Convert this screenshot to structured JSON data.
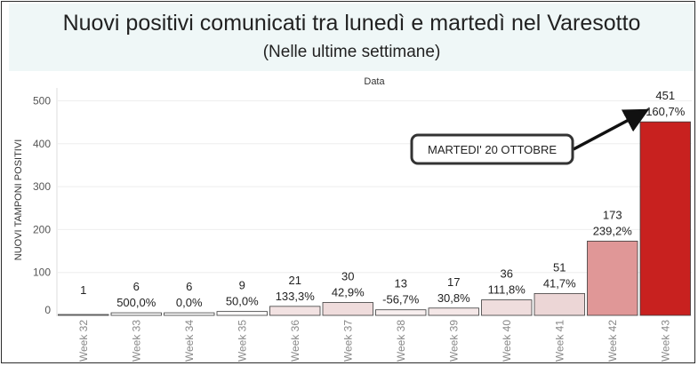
{
  "header": {
    "title": "Nuovi positivi comunicati tra lunedì e martedì nel Varesotto",
    "subtitle": "(Nelle ultime settimane)"
  },
  "chart_data": {
    "type": "bar",
    "title": "Nuovi positivi comunicati tra lunedì e martedì nel Varesotto",
    "subtitle": "(Nelle ultime settimane)",
    "column_header": "Data",
    "ylabel": "NUOVI TAMPONI POSITIVI",
    "ylim": [
      0,
      530
    ],
    "yticks": [
      0,
      100,
      200,
      300,
      400,
      500
    ],
    "categories": [
      "Week 32",
      "Week 33",
      "Week 34",
      "Week 35",
      "Week 36",
      "Week 37",
      "Week 38",
      "Week 39",
      "Week 40",
      "Week 41",
      "Week 42",
      "Week 43"
    ],
    "values": [
      1,
      6,
      6,
      9,
      21,
      30,
      13,
      17,
      36,
      51,
      173,
      451
    ],
    "pct_change": [
      "",
      "500,0%",
      "0,0%",
      "50,0%",
      "133,3%",
      "42,9%",
      "-56,7%",
      "30,8%",
      "111,8%",
      "41,7%",
      "239,2%",
      "160,7%"
    ],
    "bar_colors": [
      "#ffffff",
      "#ffffff",
      "#ffffff",
      "#fdfbfb",
      "#f2e2e2",
      "#efdcdc",
      "#f7eeee",
      "#f4e7e7",
      "#efdddd",
      "#ecd6d6",
      "#e09797",
      "#c8211f"
    ],
    "annotation": {
      "text": "MARTEDI' 20 OTTOBRE",
      "category": "Week 43"
    },
    "grid": true
  }
}
